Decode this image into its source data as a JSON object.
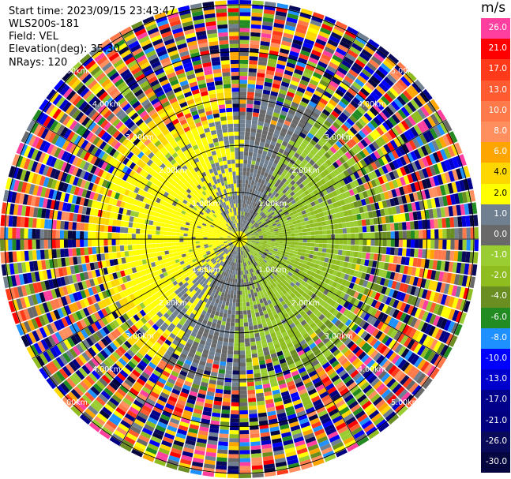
{
  "header": {
    "start_time": "Start time: 2023/09/15 23:43:47",
    "station": "WLS200s-181",
    "field": "Field: VEL",
    "elevation": "Elevation(deg): 35.30",
    "nrays": "NRays: 120"
  },
  "colorbar": {
    "unit": "m/s",
    "levels": [
      {
        "label": "26.0",
        "color": "#ff3fa0"
      },
      {
        "label": "21.0",
        "color": "#ff0000"
      },
      {
        "label": "17.0",
        "color": "#ff3a1a"
      },
      {
        "label": "13.0",
        "color": "#ff5a30"
      },
      {
        "label": "10.0",
        "color": "#ff7a4a"
      },
      {
        "label": "8.0",
        "color": "#ff8f5f"
      },
      {
        "label": "6.0",
        "color": "#ffa500"
      },
      {
        "label": "4.0",
        "color": "#ffd700"
      },
      {
        "label": "2.0",
        "color": "#ffff00"
      },
      {
        "label": "1.0",
        "color": "#708090"
      },
      {
        "label": "0.0",
        "color": "#696969"
      },
      {
        "label": "-1.0",
        "color": "#9acd32"
      },
      {
        "label": "-2.0",
        "color": "#8fbc1f"
      },
      {
        "label": "-4.0",
        "color": "#6b8e23"
      },
      {
        "label": "-6.0",
        "color": "#228b22"
      },
      {
        "label": "-8.0",
        "color": "#1e90ff"
      },
      {
        "label": "-10.0",
        "color": "#0000ff"
      },
      {
        "label": "-13.0",
        "color": "#0000cd"
      },
      {
        "label": "-17.0",
        "color": "#00008b"
      },
      {
        "label": "-21.0",
        "color": "#000080"
      },
      {
        "label": "-26.0",
        "color": "#0a0a5a"
      },
      {
        "label": "-30.0",
        "color": "#050540"
      }
    ]
  },
  "chart_data": {
    "type": "heatmap",
    "projection": "polar-ppi",
    "field": "VEL",
    "units": "m/s",
    "n_rays": 120,
    "max_range_km": 5.0,
    "range_rings_km": [
      1,
      2,
      3,
      4,
      5
    ],
    "range_ring_labels": [
      "1.00km",
      "2.00km",
      "3.00km",
      "4.00km",
      "5.00km"
    ],
    "spoke_interval_deg": 30,
    "grid": true
  }
}
